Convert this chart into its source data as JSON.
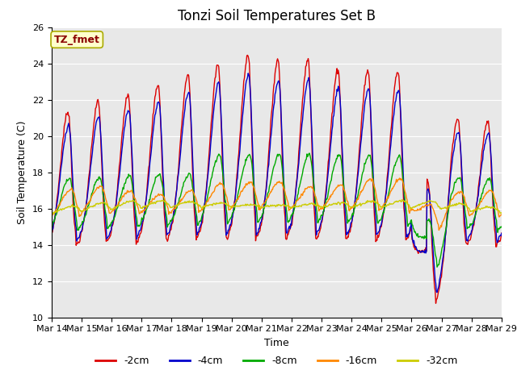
{
  "title": "Tonzi Soil Temperatures Set B",
  "xlabel": "Time",
  "ylabel": "Soil Temperature (C)",
  "annotation": "TZ_fmet",
  "annotation_color": "#8B0000",
  "annotation_bg": "#FFFFCC",
  "ylim": [
    10,
    26
  ],
  "x_tick_labels": [
    "Mar 14",
    "Mar 15",
    "Mar 16",
    "Mar 17",
    "Mar 18",
    "Mar 19",
    "Mar 20",
    "Mar 21",
    "Mar 22",
    "Mar 23",
    "Mar 24",
    "Mar 25",
    "Mar 26",
    "Mar 27",
    "Mar 28",
    "Mar 29"
  ],
  "series_colors": {
    "-2cm": "#DD0000",
    "-4cm": "#0000CC",
    "-8cm": "#00AA00",
    "-16cm": "#FF8800",
    "-32cm": "#CCCC00"
  },
  "bg_color": "#E8E8E8",
  "title_fontsize": 12,
  "axis_fontsize": 9,
  "tick_fontsize": 8
}
